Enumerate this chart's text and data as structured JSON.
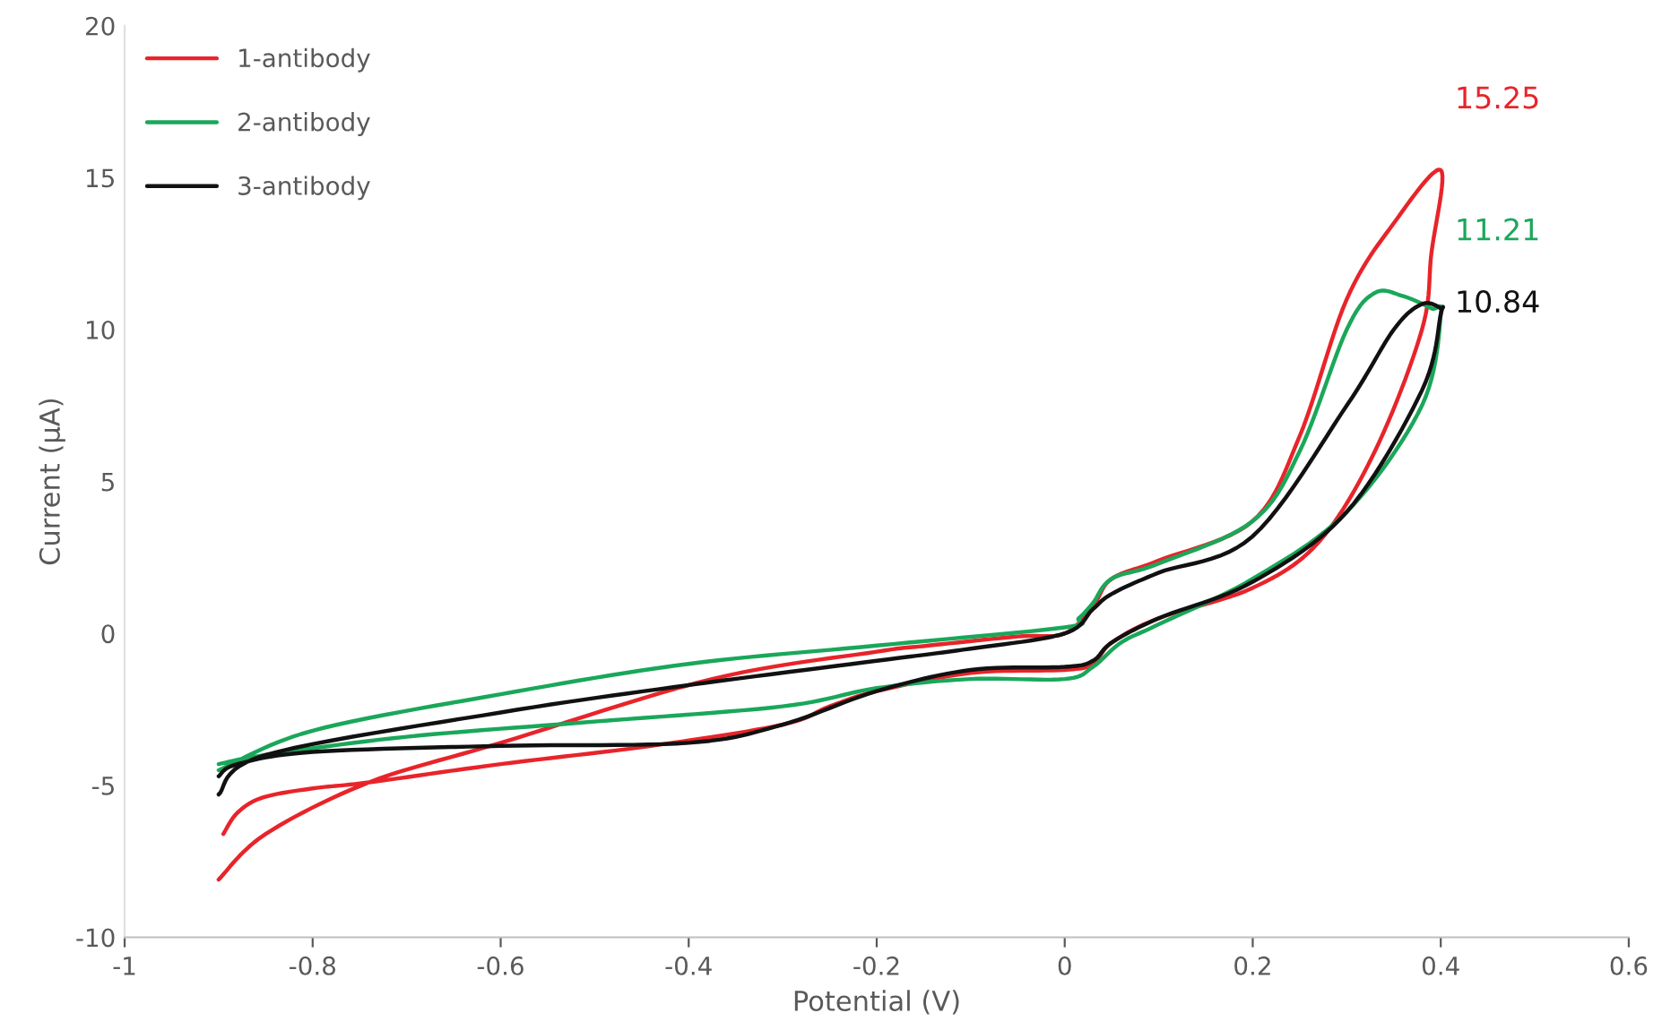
{
  "chart_data": {
    "type": "line",
    "xlabel": "Potential (V)",
    "ylabel": "Current (μA)",
    "xlim": [
      -1,
      0.6
    ],
    "xticks": [
      -1,
      -0.8,
      -0.6,
      -0.4,
      -0.2,
      0,
      0.2,
      0.4,
      0.6
    ],
    "ylim": [
      -10,
      20
    ],
    "yticks": [
      -10,
      -5,
      0,
      5,
      10,
      15,
      20
    ],
    "grid": false,
    "legend": "top left",
    "marker": "none",
    "line_style": "solid",
    "series": [
      {
        "name": "1-antibody",
        "color": "#e8242a",
        "x": [
          -0.9,
          -0.85,
          -0.74,
          -0.6,
          -0.375,
          -0.2,
          -0.145,
          -0.05,
          0,
          0.03,
          0.05,
          0.1,
          0.2,
          0.25,
          0.3,
          0.35,
          0.4,
          0.39,
          0.38,
          0.33,
          0.27,
          0.2,
          0.1,
          0.05,
          0.03,
          0,
          -0.1,
          -0.2,
          -0.25,
          -0.3,
          -0.44,
          -0.6,
          -0.74,
          -0.8,
          -0.853,
          -0.88,
          -0.895
        ],
        "values": [
          -8.1,
          -6.6,
          -4.9,
          -3.6,
          -1.5,
          -0.6,
          -0.4,
          -0.1,
          0.0,
          0.9,
          1.8,
          2.4,
          3.7,
          6.5,
          11.0,
          13.5,
          15.25,
          12.5,
          10.0,
          6.0,
          3.0,
          1.5,
          0.5,
          -0.3,
          -1.0,
          -1.2,
          -1.3,
          -1.9,
          -2.4,
          -3.0,
          -3.7,
          -4.3,
          -4.9,
          -5.1,
          -5.4,
          -5.9,
          -6.6
        ]
      },
      {
        "name": "2-antibody",
        "color": "#1aa75a",
        "x": [
          -0.9,
          -0.8,
          -0.6,
          -0.4,
          -0.2,
          0,
          0.015,
          0.03,
          0.05,
          0.1,
          0.2,
          0.25,
          0.3,
          0.33,
          0.36,
          0.39,
          0.4,
          0.38,
          0.3,
          0.2,
          0.1,
          0.06,
          0.03,
          0,
          -0.1,
          -0.2,
          -0.3,
          -0.5,
          -0.7,
          -0.85,
          -0.9
        ],
        "values": [
          -4.5,
          -3.2,
          -2.0,
          -1.0,
          -0.4,
          0.2,
          0.5,
          1.0,
          1.8,
          2.3,
          3.7,
          6.0,
          10.0,
          11.21,
          11.1,
          10.7,
          10.5,
          7.5,
          4.0,
          1.8,
          0.3,
          -0.3,
          -1.1,
          -1.5,
          -1.5,
          -1.8,
          -2.4,
          -2.9,
          -3.4,
          -4.0,
          -4.3
        ]
      },
      {
        "name": "3-antibody",
        "color": "#111111",
        "x": [
          -0.9,
          -0.85,
          -0.6,
          -0.4,
          -0.2,
          -0.1,
          0,
          0.03,
          0.05,
          0.1,
          0.2,
          0.3,
          0.35,
          0.38,
          0.4,
          0.4,
          0.38,
          0.3,
          0.2,
          0.1,
          0.05,
          0.03,
          0,
          -0.1,
          -0.2,
          -0.3,
          -0.4,
          -0.6,
          -0.8,
          -0.88,
          -0.9
        ],
        "values": [
          -5.3,
          -4.0,
          -2.6,
          -1.7,
          -0.9,
          -0.5,
          0.0,
          0.8,
          1.3,
          2.0,
          3.2,
          7.5,
          10.0,
          10.84,
          10.7,
          10.5,
          8.0,
          4.0,
          1.7,
          0.5,
          -0.3,
          -0.9,
          -1.1,
          -1.2,
          -1.9,
          -3.0,
          -3.6,
          -3.7,
          -3.9,
          -4.3,
          -4.7
        ]
      }
    ],
    "annotations": [
      "15.25",
      "11.21",
      "10.84"
    ]
  }
}
